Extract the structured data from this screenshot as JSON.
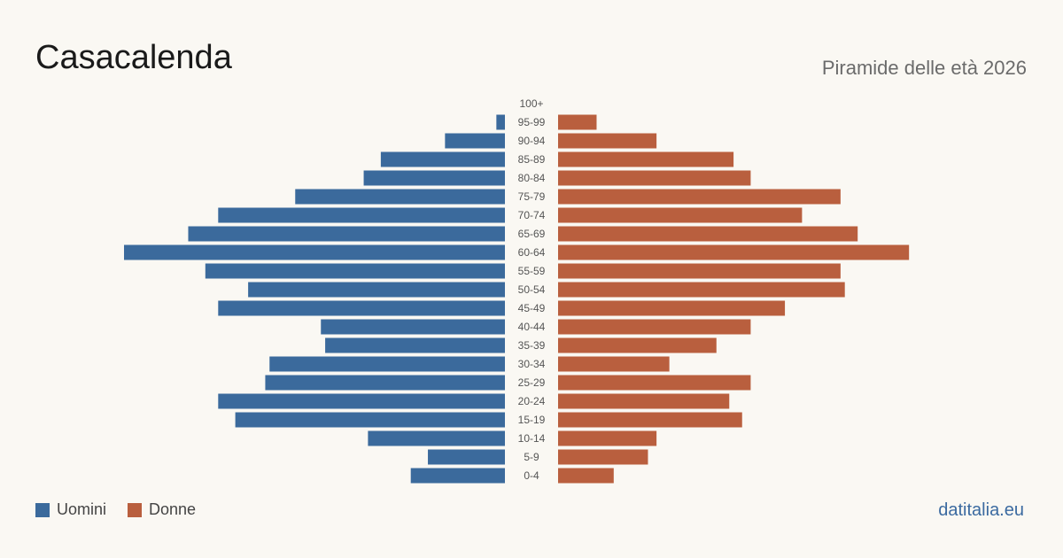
{
  "header": {
    "title": "Casacalenda",
    "subtitle": "Piramide delle età 2026"
  },
  "legend": {
    "male_label": "Uomini",
    "female_label": "Donne"
  },
  "footer": {
    "site": "datitalia.eu"
  },
  "colors": {
    "male": "#3b6a9c",
    "female": "#b95f3e",
    "label": "#555555"
  },
  "chart_data": {
    "type": "bar",
    "orientation": "horizontal-pyramid",
    "categories": [
      "100+",
      "95-99",
      "90-94",
      "85-89",
      "80-84",
      "75-79",
      "70-74",
      "65-69",
      "60-64",
      "55-59",
      "50-54",
      "45-49",
      "40-44",
      "35-39",
      "30-34",
      "25-29",
      "20-24",
      "15-19",
      "10-14",
      "5-9",
      "0-4"
    ],
    "series": [
      {
        "name": "Uomini",
        "values": [
          0,
          2,
          14,
          29,
          33,
          49,
          67,
          74,
          89,
          70,
          60,
          67,
          43,
          42,
          55,
          56,
          67,
          63,
          32,
          18,
          22
        ]
      },
      {
        "name": "Donne",
        "values": [
          0,
          9,
          23,
          41,
          45,
          66,
          57,
          70,
          82,
          66,
          67,
          53,
          45,
          37,
          26,
          45,
          40,
          43,
          23,
          21,
          13
        ]
      }
    ],
    "legend_position": "bottom-left",
    "grid": false
  }
}
